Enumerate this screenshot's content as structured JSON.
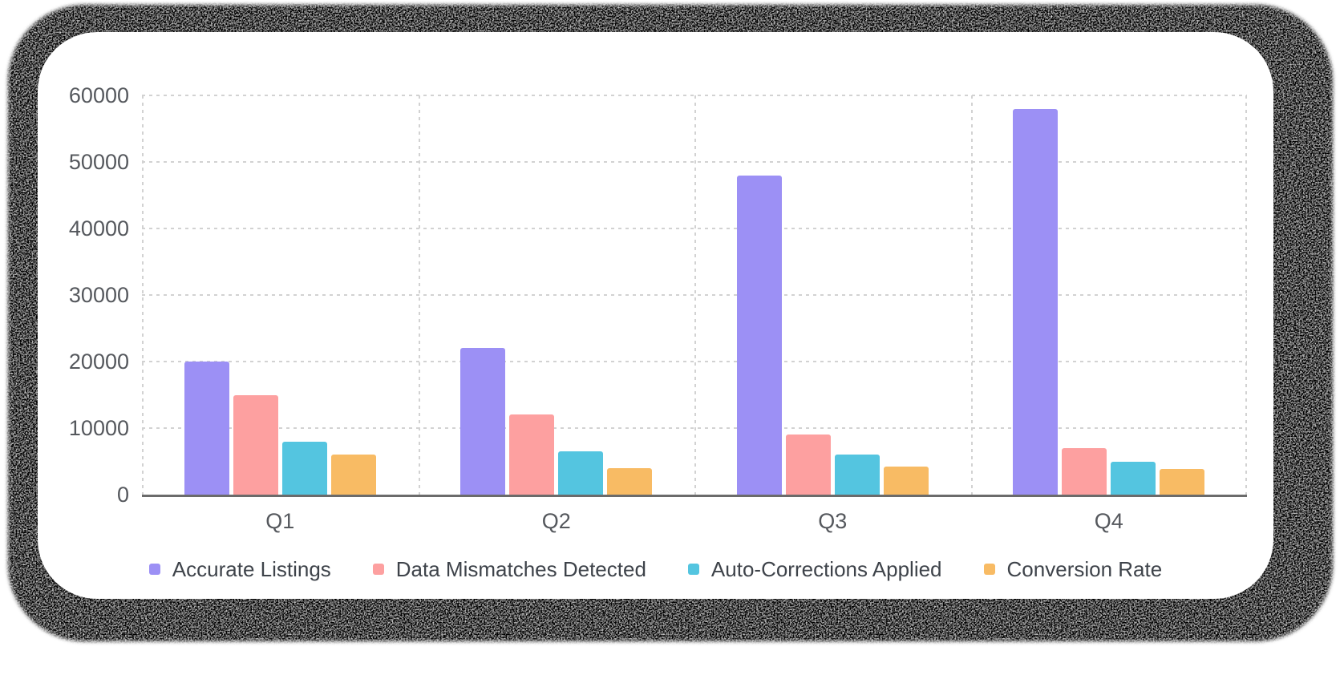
{
  "chart_data": {
    "type": "bar",
    "title": "",
    "xlabel": "",
    "ylabel": "",
    "categories": [
      "Q1",
      "Q2",
      "Q3",
      "Q4"
    ],
    "series": [
      {
        "name": "Accurate Listings",
        "color": "#9c90f5",
        "values": [
          20000,
          22000,
          48000,
          58000
        ]
      },
      {
        "name": "Data Mismatches Detected",
        "color": "#fda0a0",
        "values": [
          15000,
          12000,
          9000,
          7000
        ]
      },
      {
        "name": "Auto-Corrections Applied",
        "color": "#54c5e0",
        "values": [
          8000,
          6500,
          6000,
          5000
        ]
      },
      {
        "name": "Conversion Rate",
        "color": "#f8bb64",
        "values": [
          6000,
          4000,
          4200,
          3800
        ]
      }
    ],
    "y_ticks": [
      0,
      10000,
      20000,
      30000,
      40000,
      50000,
      60000
    ],
    "ylim": [
      0,
      60000
    ],
    "grid": "dashed",
    "legend_position": "bottom",
    "colors": {
      "grid_line": "#d2d2d2",
      "axis_line": "#6b6b6b",
      "tick_text": "#55585d",
      "legend_text": "#3e434a",
      "card_background": "#ffffff",
      "card_shadow": "#060606"
    }
  }
}
